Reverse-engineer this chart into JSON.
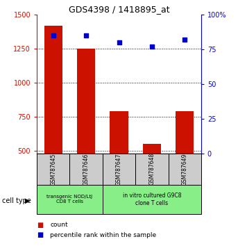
{
  "title": "GDS4398 / 1418895_at",
  "samples": [
    "GSM787645",
    "GSM787646",
    "GSM787647",
    "GSM787648",
    "GSM787649"
  ],
  "counts": [
    1420,
    1250,
    790,
    555,
    790
  ],
  "percentiles": [
    85,
    85,
    80,
    77,
    82
  ],
  "ylim_left": [
    480,
    1500
  ],
  "ylim_right": [
    0,
    100
  ],
  "yticks_left": [
    500,
    750,
    1000,
    1250,
    1500
  ],
  "yticks_right": [
    0,
    25,
    50,
    75,
    100
  ],
  "ytick_labels_right": [
    "0",
    "25",
    "50",
    "75",
    "100%"
  ],
  "bar_color": "#cc1100",
  "dot_color": "#0000cc",
  "group1_label": "transgenic NOD/LtJ\nCD8 T cells",
  "group2_label": "in vitro cultured G9C8\nclone T cells",
  "group1_color": "#88ee88",
  "group2_color": "#88ee88",
  "sample_box_color": "#cccccc",
  "legend_count_label": "count",
  "legend_pct_label": "percentile rank within the sample",
  "cell_type_label": "cell type",
  "grid_color": "black",
  "bar_bottom": 480
}
